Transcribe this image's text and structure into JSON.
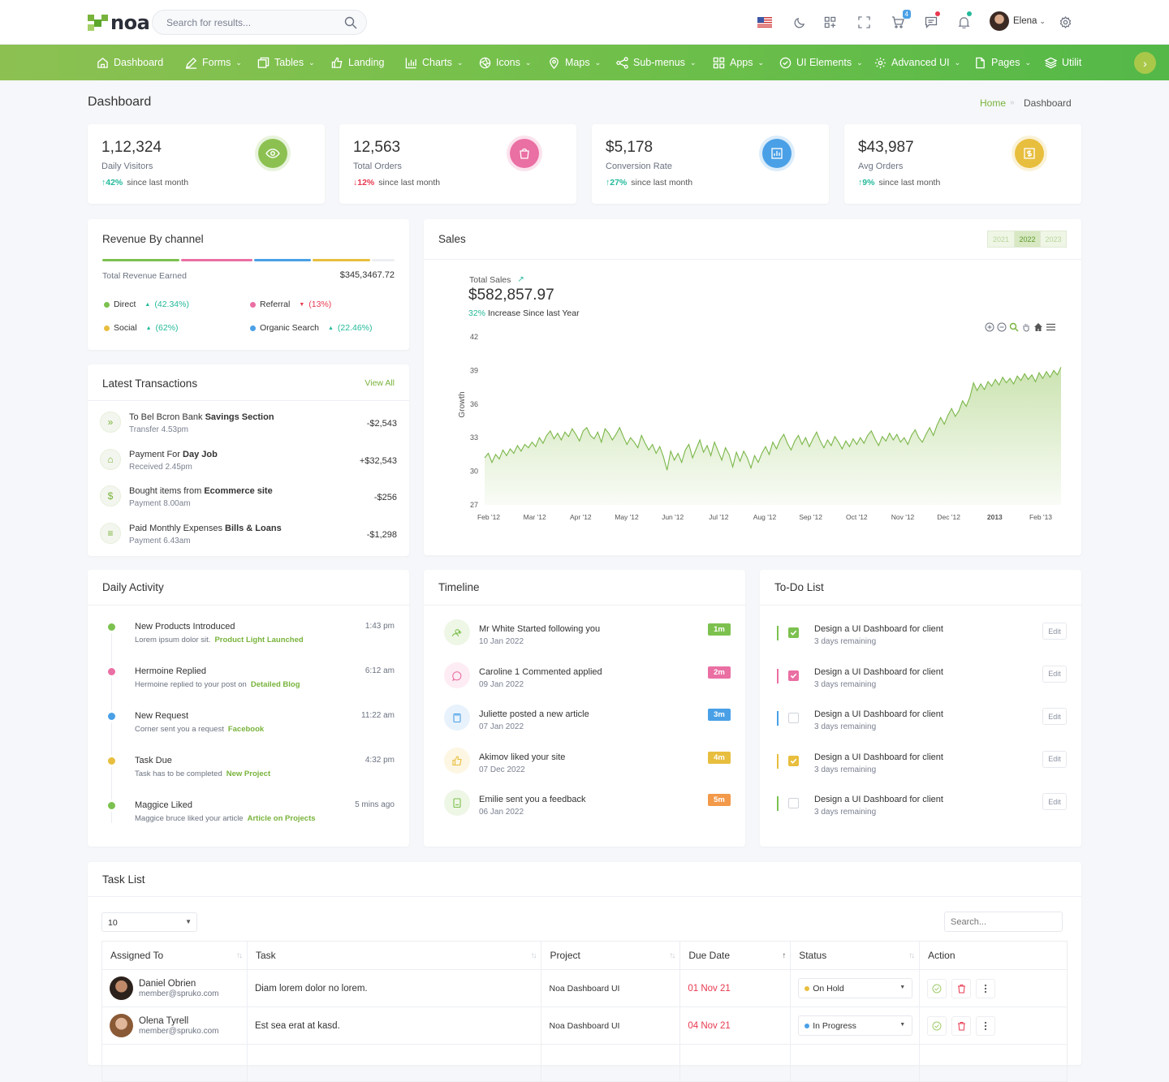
{
  "header": {
    "logo_text": "noa",
    "search_placeholder": "Search for results...",
    "cart_count": "4",
    "user_name": "Elena"
  },
  "nav": {
    "items": [
      {
        "label": "Dashboard"
      },
      {
        "label": "Forms"
      },
      {
        "label": "Tables"
      },
      {
        "label": "Landing"
      },
      {
        "label": "Charts"
      },
      {
        "label": "Icons"
      },
      {
        "label": "Maps"
      },
      {
        "label": "Sub-menus"
      },
      {
        "label": "Apps"
      },
      {
        "label": "UI Elements"
      },
      {
        "label": "Advanced UI"
      },
      {
        "label": "Pages"
      },
      {
        "label": "Utilit"
      }
    ],
    "next_label": "›"
  },
  "page": {
    "title": "Dashboard",
    "breadcrumb_home": "Home",
    "breadcrumb_sep": "»",
    "breadcrumb_current": "Dashboard"
  },
  "stats": [
    {
      "value": "1,12,324",
      "label": "Daily Visitors",
      "change": "42%",
      "direction": "up",
      "since": "since last month",
      "color": "#8cc152"
    },
    {
      "value": "12,563",
      "label": "Total Orders",
      "change": "12%",
      "direction": "down",
      "since": "since last month",
      "color": "#ea6fa3"
    },
    {
      "value": "$5,178",
      "label": "Conversion Rate",
      "change": "27%",
      "direction": "up",
      "since": "since last month",
      "color": "#4aa0e6"
    },
    {
      "value": "$43,987",
      "label": "Avg Orders",
      "change": "9%",
      "direction": "up",
      "since": "since last month",
      "color": "#e8be3e"
    }
  ],
  "revenue": {
    "title": "Revenue By channel",
    "total_label": "Total Revenue Earned",
    "total_value": "$345,3467.72",
    "segments": [
      {
        "name": "Direct",
        "pct": "(42.34%)",
        "trend": "up",
        "color": "#7cc14f",
        "share": 0.27
      },
      {
        "name": "Referral",
        "pct": "(13%)",
        "trend": "down",
        "color": "#ea6fa3",
        "share": 0.25
      },
      {
        "name": "Social",
        "pct": "(62%)",
        "trend": "up",
        "color": "#e8be3e",
        "share": 0.2
      },
      {
        "name": "Organic Search",
        "pct": "(22.46%)",
        "trend": "up",
        "color": "#4aa0e6",
        "share": 0.2
      }
    ]
  },
  "transactions": {
    "title": "Latest Transactions",
    "view_all": "View All",
    "items": [
      {
        "title_pre": "To Bel Bcron Bank ",
        "title_bold": "Savings Section",
        "sub": "Transfer 4.53pm",
        "amount": "-$2,543",
        "icon": "»"
      },
      {
        "title_pre": "Payment For ",
        "title_bold": "Day Job",
        "sub": "Received 2.45pm",
        "amount": "+$32,543",
        "icon": "⌂"
      },
      {
        "title_pre": "Bought items from ",
        "title_bold": "Ecommerce site",
        "sub": "Payment 8.00am",
        "amount": "-$256",
        "icon": "$"
      },
      {
        "title_pre": "Paid Monthly Expenses ",
        "title_bold": "Bills & Loans",
        "sub": "Payment 6.43am",
        "amount": "-$1,298",
        "icon": "≡"
      }
    ]
  },
  "sales": {
    "title": "Sales",
    "years": [
      "2021",
      "2022",
      "2023"
    ],
    "active_year": "2022",
    "total_label": "Total Sales",
    "total_value": "$582,857.97",
    "increase_pct": "32%",
    "increase_text": "Increase Since last Year"
  },
  "chart_data": {
    "type": "area",
    "ylabel": "Growth",
    "xlabel": "",
    "ylim": [
      27,
      42
    ],
    "y_ticks": [
      "42",
      "39",
      "36",
      "33",
      "30",
      "27"
    ],
    "x_ticks": [
      "Feb '12",
      "Mar '12",
      "Apr '12",
      "May '12",
      "Jun '12",
      "Jul '12",
      "Aug '12",
      "Sep '12",
      "Oct '12",
      "Nov '12",
      "Dec '12",
      "2013",
      "Feb '13"
    ],
    "series": [
      {
        "values": [
          31.2,
          31.6,
          30.8,
          31.5,
          31.1,
          31.9,
          31.4,
          32.0,
          31.6,
          32.3,
          31.8,
          32.4,
          32.1,
          32.6,
          32.2,
          33.0,
          32.5,
          33.2,
          33.6,
          32.9,
          33.4,
          32.8,
          33.5,
          33.1,
          33.8,
          33.3,
          32.7,
          33.6,
          33.9,
          33.2,
          32.9,
          33.5,
          32.6,
          33.8,
          33.4,
          32.8,
          33.3,
          33.9,
          33.1,
          32.4,
          33.0,
          32.6,
          32.1,
          33.2,
          32.5,
          31.9,
          32.4,
          31.6,
          32.2,
          31.3,
          30.1,
          31.8,
          31.0,
          31.6,
          30.8,
          31.9,
          32.4,
          31.2,
          32.0,
          32.8,
          31.7,
          32.3,
          31.4,
          32.6,
          31.8,
          31.0,
          32.1,
          31.5,
          30.4,
          31.7,
          30.9,
          31.8,
          31.2,
          30.3,
          31.4,
          30.8,
          31.6,
          32.2,
          31.5,
          32.6,
          32.0,
          32.8,
          33.3,
          32.5,
          31.9,
          32.7,
          33.2,
          32.4,
          33.0,
          32.2,
          32.9,
          33.5,
          32.7,
          32.1,
          32.8,
          32.3,
          33.1,
          32.6,
          32.0,
          32.7,
          32.2,
          32.9,
          32.4,
          33.0,
          32.5,
          33.2,
          33.6,
          32.9,
          32.3,
          33.1,
          32.7,
          33.4,
          32.8,
          33.3,
          32.6,
          33.0,
          32.4,
          33.2,
          33.7,
          33.0,
          32.6,
          33.3,
          33.9,
          33.2,
          34.1,
          34.8,
          34.2,
          35.0,
          35.6,
          34.9,
          35.4,
          36.3,
          35.8,
          36.6,
          37.9,
          37.2,
          37.8,
          37.3,
          38.0,
          37.6,
          38.2,
          37.7,
          38.4,
          37.9,
          38.3,
          37.8,
          38.5,
          38.1,
          38.7,
          38.2,
          38.6,
          38.0,
          38.8,
          38.3,
          38.9,
          38.4,
          39.0,
          38.6,
          39.3
        ]
      }
    ],
    "grid": false,
    "legend": "none"
  },
  "daily_activity": {
    "title": "Daily Activity",
    "items": [
      {
        "title": "New Products Introduced",
        "time": "1:43 pm",
        "desc": "Lorem ipsum dolor sit.",
        "link": "Product Light Launched",
        "color": "#7cc14f"
      },
      {
        "title": "Hermoine Replied",
        "time": "6:12 am",
        "desc": "Hermoine replied to your post on",
        "link": "Detailed Blog",
        "color": "#ea6fa3"
      },
      {
        "title": "New Request",
        "time": "11:22 am",
        "desc": "Corner sent you a request",
        "link": "Facebook",
        "color": "#4aa0e6"
      },
      {
        "title": "Task Due",
        "time": "4:32 pm",
        "desc": "Task has to be completed",
        "link": "New Project",
        "color": "#e8be3e"
      },
      {
        "title": "Maggice Liked",
        "time": "5 mins ago",
        "desc": "Maggice bruce liked your article",
        "link": "Article on Projects",
        "color": "#7cc14f"
      }
    ]
  },
  "timeline": {
    "title": "Timeline",
    "items": [
      {
        "text": "Mr White Started following you",
        "date": "10 Jan 2022",
        "tag": "1m",
        "color": "#7cc14f",
        "bg": "#eef6e6",
        "icon": "user-plus-icon"
      },
      {
        "text": "Caroline 1 Commented applied",
        "date": "09 Jan 2022",
        "tag": "2m",
        "color": "#ea6fa3",
        "bg": "#fdecf3",
        "icon": "comment-icon"
      },
      {
        "text": "Juliette posted a new article",
        "date": "07 Jan 2022",
        "tag": "3m",
        "color": "#4aa0e6",
        "bg": "#e8f2fc",
        "icon": "clipboard-icon"
      },
      {
        "text": "Akimov liked your site",
        "date": "07 Dec 2022",
        "tag": "4m",
        "color": "#e8be3e",
        "bg": "#fdf6e3",
        "icon": "thumbs-up-icon"
      },
      {
        "text": "Emilie sent you a feedback",
        "date": "06 Jan 2022",
        "tag": "5m",
        "color": "#f2994a",
        "bg": "#eef6e6",
        "icon": "book-icon"
      }
    ]
  },
  "todo": {
    "title": "To-Do List",
    "edit_label": "Edit",
    "items": [
      {
        "text": "Design a UI Dashboard for client",
        "sub": "3 days remaining",
        "checked": true,
        "color": "#7cc14f"
      },
      {
        "text": "Design a UI Dashboard for client",
        "sub": "3 days remaining",
        "checked": true,
        "color": "#ea6fa3"
      },
      {
        "text": "Design a UI Dashboard for client",
        "sub": "3 days remaining",
        "checked": false,
        "color": "#4aa0e6"
      },
      {
        "text": "Design a UI Dashboard for client",
        "sub": "3 days remaining",
        "checked": true,
        "color": "#e8be3e"
      },
      {
        "text": "Design a UI Dashboard for client",
        "sub": "3 days remaining",
        "checked": false,
        "color": "#7cc14f"
      }
    ]
  },
  "task_list": {
    "title": "Task List",
    "page_size": "10",
    "search_placeholder": "Search...",
    "columns": [
      "Assigned To",
      "Task",
      "Project",
      "Due Date",
      "Status",
      "Action"
    ],
    "rows": [
      {
        "name": "Daniel Obrien",
        "email": "member@spruko.com",
        "task": "Diam lorem dolor no lorem.",
        "project": "Noa Dashboard UI",
        "due": "01 Nov 21",
        "status": "On Hold",
        "status_color": "#e8be3e"
      },
      {
        "name": "Olena Tyrell",
        "email": "member@spruko.com",
        "task": "Est sea erat at kasd.",
        "project": "Noa Dashboard UI",
        "due": "04 Nov 21",
        "status": "In Progress",
        "status_color": "#4aa0e6"
      }
    ]
  }
}
